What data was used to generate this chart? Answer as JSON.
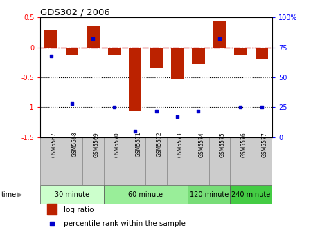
{
  "title": "GDS302 / 2006",
  "samples": [
    "GSM5567",
    "GSM5568",
    "GSM5569",
    "GSM5570",
    "GSM5571",
    "GSM5572",
    "GSM5573",
    "GSM5574",
    "GSM5575",
    "GSM5576",
    "GSM5577"
  ],
  "log_ratio": [
    0.3,
    -0.12,
    0.35,
    -0.12,
    -1.07,
    -0.35,
    -0.52,
    -0.27,
    0.45,
    -0.12,
    -0.2
  ],
  "percentile": [
    68,
    28,
    82,
    25,
    5,
    22,
    17,
    22,
    82,
    25,
    25
  ],
  "ylim_left": [
    -1.5,
    0.5
  ],
  "ylim_right": [
    0,
    100
  ],
  "yticks_left": [
    -1.5,
    -1.0,
    -0.5,
    0.0,
    0.5
  ],
  "yticks_right": [
    0,
    25,
    50,
    75,
    100
  ],
  "bar_color": "#bb2200",
  "dot_color": "#0000cc",
  "hline_color": "#cc0000",
  "groups": [
    {
      "label": "30 minute",
      "start": 0,
      "end": 2,
      "color": "#ccffcc"
    },
    {
      "label": "60 minute",
      "start": 3,
      "end": 6,
      "color": "#99ee99"
    },
    {
      "label": "120 minute",
      "start": 7,
      "end": 8,
      "color": "#77dd77"
    },
    {
      "label": "240 minute",
      "start": 9,
      "end": 10,
      "color": "#44cc44"
    }
  ],
  "time_label": "time",
  "legend_bar_label": "log ratio",
  "legend_dot_label": "percentile rank within the sample",
  "background_color": "#ffffff",
  "sample_bg": "#cccccc"
}
